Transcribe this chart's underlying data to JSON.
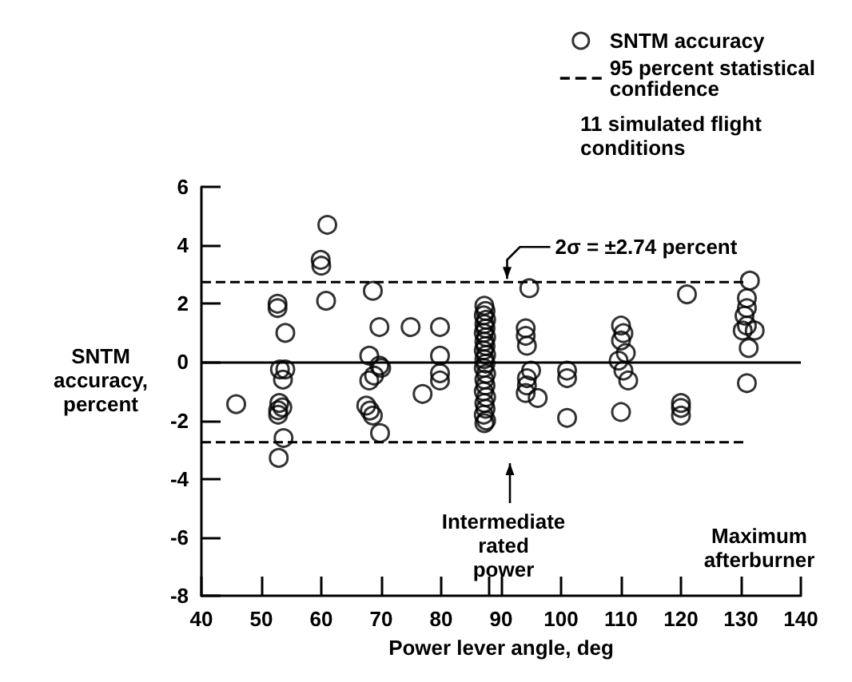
{
  "chart_data": {
    "type": "scatter",
    "xlabel": "Power lever angle, deg",
    "ylabel": "SNTM\naccuracy,\npercent",
    "xlim": [
      40,
      140
    ],
    "xticks": [
      40,
      50,
      60,
      70,
      80,
      {
        "value": 88,
        "label": null
      },
      90,
      100,
      110,
      120,
      130,
      140
    ],
    "ylim": [
      -8,
      6
    ],
    "yticks": [
      -8,
      -6,
      -4,
      -2,
      0,
      2,
      4,
      6
    ],
    "marker": "circle",
    "legend": "top right",
    "grid": false,
    "series": [
      {
        "name": "SNTM accuracy",
        "color": "#000000",
        "x": [
          45.8,
          52.7,
          52.7,
          54,
          53.1,
          54,
          53.6,
          53,
          52.8,
          53.5,
          52.8,
          53.7,
          52.9,
          59.9,
          60,
          61,
          60.8,
          68.6,
          69.7,
          74.9,
          79.8,
          68,
          69.7,
          70,
          68.8,
          68,
          67.5,
          68.1,
          68.6,
          69.8,
          76.9,
          79.8,
          79.8,
          79.8,
          87.2,
          87.4,
          87.1,
          87.5,
          87.2,
          87.4,
          87.1,
          87.5,
          87.2,
          87.4,
          87.1,
          87.5,
          87.2,
          87.4,
          87.1,
          87.5,
          87.2,
          87.4,
          87.1,
          87.5,
          87.2,
          87.4,
          87.1,
          87.5,
          87.2,
          94.7,
          94.1,
          94.1,
          94.3,
          95,
          94.3,
          94.3,
          94.1,
          96.1,
          101,
          101,
          101,
          110,
          110.4,
          110,
          110.8,
          109.6,
          110.4,
          111.2,
          110,
          121,
          120,
          120,
          120,
          131.5,
          131,
          131,
          130.6,
          131,
          130.3,
          132.3,
          131.3,
          131
        ],
        "values": [
          -1.44,
          2.0,
          1.85,
          1.0,
          -0.25,
          -0.25,
          -0.6,
          -1.4,
          -1.65,
          -1.55,
          -1.8,
          -2.6,
          -3.28,
          3.5,
          3.3,
          4.7,
          2.1,
          2.44,
          1.2,
          1.2,
          1.2,
          0.22,
          -0.12,
          -0.2,
          -0.46,
          -0.63,
          -1.49,
          -1.66,
          -1.83,
          -2.43,
          -1.09,
          0.22,
          -0.38,
          -0.63,
          1.93,
          1.75,
          1.6,
          1.45,
          1.3,
          1.15,
          1.0,
          0.85,
          0.7,
          0.55,
          0.4,
          0.25,
          0.1,
          -0.05,
          -0.2,
          -0.4,
          -0.6,
          -0.8,
          -1.0,
          -1.2,
          -1.4,
          -1.6,
          -1.8,
          -2.0,
          -2.09,
          2.53,
          1.16,
          0.9,
          0.56,
          -0.29,
          -0.55,
          -0.8,
          -1.06,
          -1.23,
          -0.29,
          -0.55,
          -1.91,
          1.25,
          0.99,
          0.74,
          0.31,
          0.05,
          -0.29,
          -0.63,
          -1.71,
          2.32,
          -1.4,
          -1.57,
          -1.83,
          2.79,
          2.19,
          1.85,
          1.59,
          1.25,
          1.08,
          1.08,
          0.48,
          -0.72
        ]
      },
      {
        "name": "95 percent statistical\nconfidence",
        "type": "line",
        "marker": "none",
        "line_style": "dashed",
        "color": "#000000",
        "x": [
          40,
          131
        ],
        "values": [
          2.74,
          2.74
        ]
      },
      {
        "type": "line",
        "marker": "none",
        "line_style": "dashed",
        "color": "#000000",
        "x": [
          40,
          131
        ],
        "values": [
          -2.74,
          -2.74
        ]
      }
    ],
    "ref_lines": [
      {
        "axis": "y",
        "value": 0,
        "label": null,
        "color": "#000000",
        "line_style": "solid"
      }
    ],
    "annotations": [
      "11 simulated flight\nconditions",
      {
        "text": "2σ = ±2.74 percent",
        "x": 91,
        "y": 2.74
      },
      "Intermediate\nrated\npower",
      "Maximum\nafterburner"
    ]
  }
}
